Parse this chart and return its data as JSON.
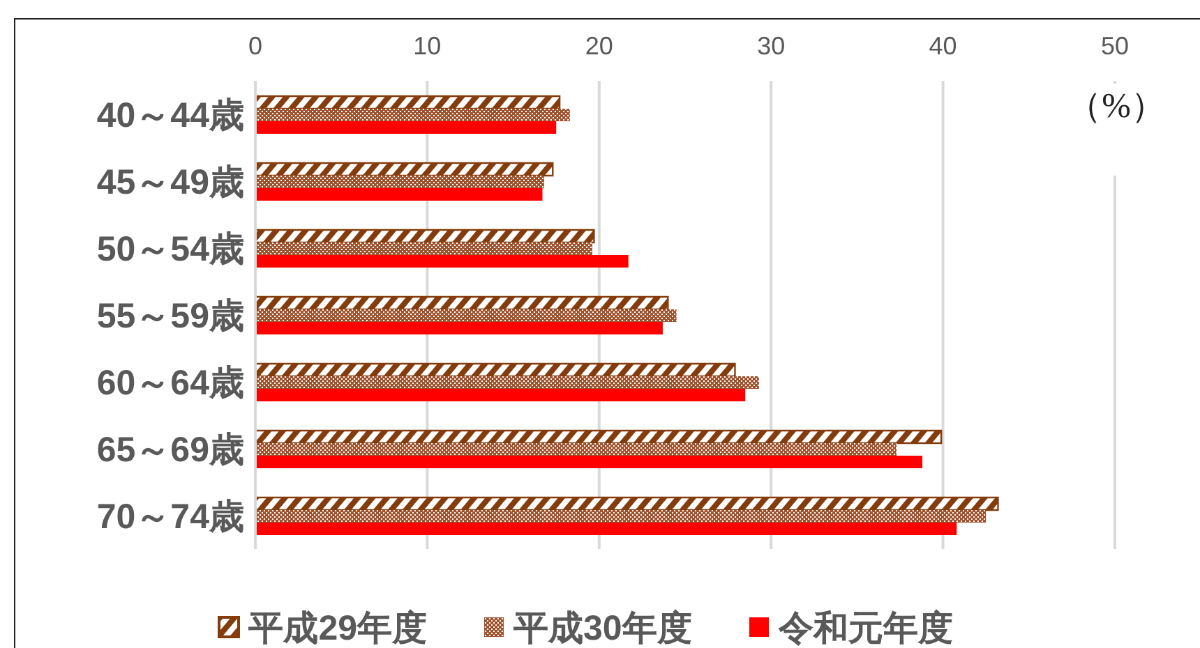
{
  "chart_data": {
    "type": "bar",
    "orientation": "horizontal",
    "xlabel": "（%）",
    "categories": [
      "40～44歳",
      "45～49歳",
      "50～54歳",
      "55～59歳",
      "60～64歳",
      "65～69歳",
      "70～74歳"
    ],
    "series": [
      {
        "name": "平成29年度",
        "color": "#843c0c",
        "values": [
          17.7,
          17.3,
          19.7,
          24.0,
          27.9,
          39.9,
          43.2
        ]
      },
      {
        "name": "平成30年度",
        "color": "#a0522d",
        "values": [
          18.3,
          16.8,
          19.6,
          24.5,
          29.3,
          37.3,
          42.5
        ]
      },
      {
        "name": "令和元年度",
        "color": "#ff0000",
        "values": [
          17.5,
          16.7,
          21.7,
          23.7,
          28.5,
          38.8,
          40.8
        ]
      }
    ],
    "xlim": [
      0,
      50
    ],
    "xticks": [
      0,
      10,
      20,
      30,
      40,
      50
    ],
    "grid": "x",
    "legend": "bottom"
  }
}
